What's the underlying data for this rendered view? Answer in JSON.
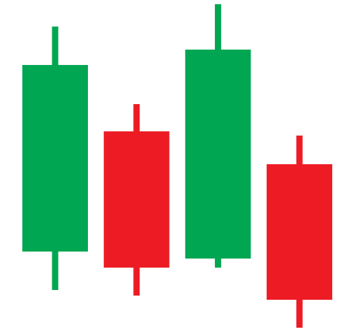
{
  "chart_data": {
    "type": "candlestick",
    "open": [
      118,
      290,
      108,
      243
    ],
    "high": [
      440,
      329,
      472,
      284
    ],
    "low": [
      63,
      55,
      95,
      9
    ],
    "close": [
      385,
      95,
      407,
      49
    ],
    "up_color": "#00a651",
    "down_color": "#ed1c24",
    "ylim": [
      0,
      478
    ]
  }
}
